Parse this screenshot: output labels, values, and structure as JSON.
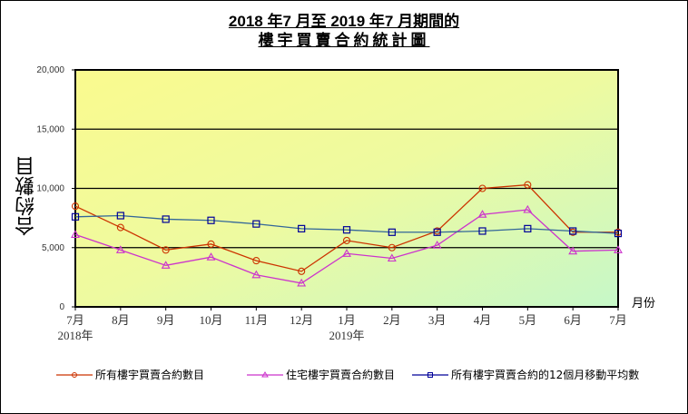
{
  "title": {
    "line1": "2018 年7 月至 2019 年7 月期間的",
    "line2": "樓宇買賣合約統計圖"
  },
  "y_axis_label": "合約數目",
  "x_axis_unit": "月份",
  "y_ticks": [
    "0",
    "5,000",
    "10,000",
    "15,000",
    "20,000"
  ],
  "x_ticks": [
    "7月",
    "8月",
    "9月",
    "10月",
    "11月",
    "12月",
    "1月",
    "2月",
    "3月",
    "4月",
    "5月",
    "6月",
    "7月"
  ],
  "x_year_labels": [
    {
      "index": 0,
      "label": "2018年"
    },
    {
      "index": 6,
      "label": "2019年"
    }
  ],
  "legend": [
    {
      "label": "所有樓宇買賣合約數目",
      "color": "#cc3300",
      "marker": "circle"
    },
    {
      "label": "住宅樓宇買賣合約數目",
      "color": "#cc33cc",
      "marker": "triangle"
    },
    {
      "label": "所有樓宇買賣合約的12個月移動平均數",
      "color": "#000099",
      "marker": "square"
    }
  ],
  "colors": {
    "bg_top_left": "#fafa90",
    "bg_bottom_right": "#c8f8c8",
    "all": "#cc3300",
    "residential": "#cc33cc",
    "moving_avg": "#000099",
    "moving_avg_line": "#336699"
  },
  "chart_data": {
    "type": "line",
    "title": "2018年7月至2019年7月期間的樓宇買賣合約統計圖",
    "xlabel": "月份",
    "ylabel": "合約數目",
    "categories": [
      "2018-07",
      "2018-08",
      "2018-09",
      "2018-10",
      "2018-11",
      "2018-12",
      "2019-01",
      "2019-02",
      "2019-03",
      "2019-04",
      "2019-05",
      "2019-06",
      "2019-07"
    ],
    "x_tick_labels": [
      "7月",
      "8月",
      "9月",
      "10月",
      "11月",
      "12月",
      "1月",
      "2月",
      "3月",
      "4月",
      "5月",
      "6月",
      "7月"
    ],
    "series": [
      {
        "name": "所有樓宇買賣合約數目",
        "marker": "circle",
        "color": "#cc3300",
        "values": [
          8500,
          6700,
          4800,
          5300,
          3900,
          3000,
          5600,
          5000,
          6400,
          10000,
          10300,
          6300,
          6300
        ]
      },
      {
        "name": "住宅樓宇買賣合約數目",
        "marker": "triangle",
        "color": "#cc33cc",
        "values": [
          6100,
          4800,
          3500,
          4200,
          2700,
          2000,
          4500,
          4100,
          5200,
          7800,
          8200,
          4700,
          4800
        ]
      },
      {
        "name": "所有樓宇買賣合約的12個月移動平均數",
        "marker": "square",
        "color": "#000099",
        "values": [
          7600,
          7700,
          7400,
          7300,
          7000,
          6600,
          6500,
          6300,
          6300,
          6400,
          6600,
          6400,
          6200
        ]
      }
    ],
    "ylim": [
      0,
      20000
    ],
    "yticks": [
      0,
      5000,
      10000,
      15000,
      20000
    ],
    "grid": "horizontal",
    "legend_position": "bottom"
  }
}
